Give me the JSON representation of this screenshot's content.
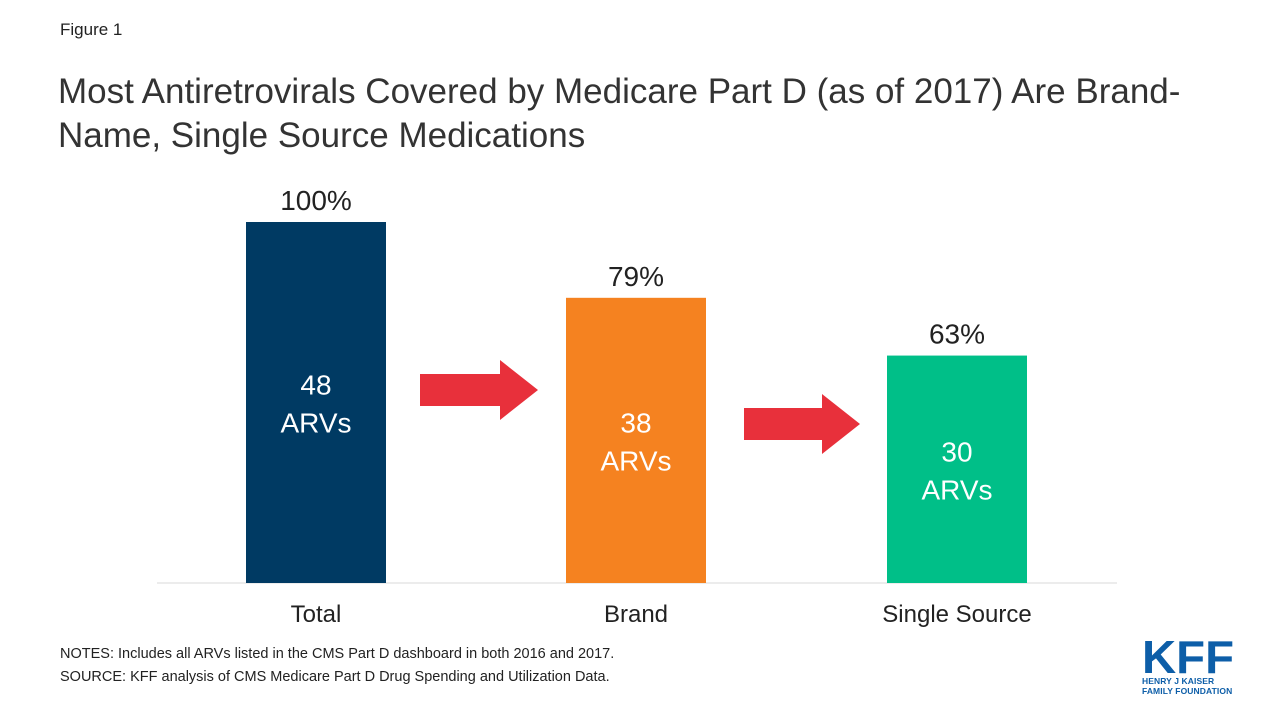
{
  "figure_label": "Figure 1",
  "title": "Most Antiretrovirals Covered by Medicare Part D (as of 2017) Are Brand-Name, Single Source Medications",
  "chart_data": {
    "type": "bar",
    "categories": [
      "Total",
      "Brand",
      "Single Source"
    ],
    "values": [
      100,
      79,
      63
    ],
    "value_labels": [
      "100%",
      "79%",
      "63%"
    ],
    "inner_labels": [
      [
        "48",
        "ARVs"
      ],
      [
        "38",
        "ARVs"
      ],
      [
        "30",
        "ARVs"
      ]
    ],
    "colors": [
      "#003a63",
      "#f58220",
      "#00bf88"
    ],
    "arrow_color": "#e8303b",
    "ylim": [
      0,
      100
    ],
    "grid": false,
    "legend": "none"
  },
  "notes": {
    "line1": "NOTES: Includes  all ARVs listed in the CMS Part D dashboard in both 2016 and 2017.",
    "line2": "SOURCE: KFF analysis of CMS Medicare Part D Drug Spending and Utilization Data."
  },
  "logo": {
    "mark": "KFF",
    "line1": "HENRY J KAISER",
    "line2": "FAMILY FOUNDATION",
    "color": "#0d5ea8"
  }
}
